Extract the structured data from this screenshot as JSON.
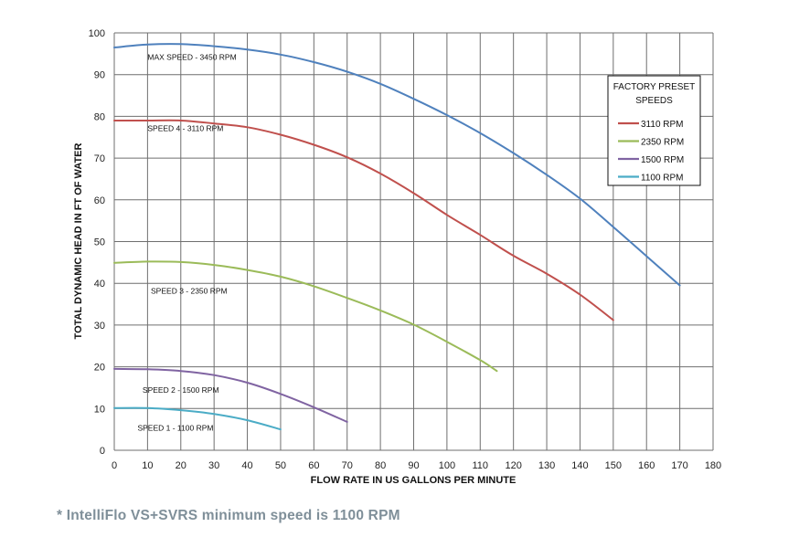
{
  "footnote": "* IntelliFlo VS+SVRS minimum speed is 1100 RPM",
  "chart_data": {
    "type": "line",
    "title": "",
    "xlabel": "FLOW RATE IN US GALLONS PER MINUTE",
    "ylabel": "TOTAL DYNAMIC HEAD IN FT OF WATER",
    "xlim": [
      0,
      180
    ],
    "ylim": [
      0,
      100
    ],
    "xticks": [
      0,
      10,
      20,
      30,
      40,
      50,
      60,
      70,
      80,
      90,
      100,
      110,
      120,
      130,
      140,
      150,
      160,
      170,
      180
    ],
    "yticks": [
      0,
      10,
      20,
      30,
      40,
      50,
      60,
      70,
      80,
      90,
      100
    ],
    "grid": true,
    "legend": {
      "title": "FACTORY PRESET SPEEDS",
      "placement": "top-right",
      "entries": [
        {
          "label": "3110 RPM",
          "color": "#c0504d"
        },
        {
          "label": "2350 RPM",
          "color": "#9bbb59"
        },
        {
          "label": "1500 RPM",
          "color": "#8064a2"
        },
        {
          "label": "1100 RPM",
          "color": "#4bacc6"
        }
      ]
    },
    "series": [
      {
        "name": "MAX SPEED - 3450 RPM",
        "color": "#4f81bd",
        "label": {
          "text": "MAX SPEED - 3450 RPM",
          "x": 10,
          "y": 93.5
        },
        "x": [
          0,
          10,
          20,
          30,
          40,
          50,
          60,
          70,
          80,
          90,
          100,
          110,
          120,
          130,
          140,
          150,
          160,
          170
        ],
        "y": [
          96.5,
          97.2,
          97.3,
          96.8,
          96.0,
          94.8,
          93.0,
          90.7,
          87.8,
          84.2,
          80.3,
          76.0,
          71.2,
          66.0,
          60.3,
          53.5,
          46.5,
          39.5
        ]
      },
      {
        "name": "SPEED 4 - 3110 RPM",
        "color": "#c0504d",
        "label": {
          "text": "SPEED 4 - 3110 RPM",
          "x": 10,
          "y": 76.5
        },
        "x": [
          0,
          10,
          20,
          30,
          40,
          50,
          60,
          70,
          80,
          90,
          100,
          110,
          120,
          130,
          140,
          150
        ],
        "y": [
          79.0,
          79.0,
          79.0,
          78.3,
          77.4,
          75.6,
          73.2,
          70.2,
          66.3,
          61.6,
          56.4,
          51.6,
          46.6,
          42.3,
          37.3,
          31.2
        ]
      },
      {
        "name": "SPEED 3 - 2350 RPM",
        "color": "#9bbb59",
        "label": {
          "text": "SPEED 3 - 2350 RPM",
          "x": 11,
          "y": 37.5
        },
        "x": [
          0,
          10,
          20,
          30,
          40,
          50,
          60,
          70,
          80,
          90,
          100,
          110,
          115
        ],
        "y": [
          44.9,
          45.2,
          45.1,
          44.4,
          43.2,
          41.6,
          39.3,
          36.5,
          33.5,
          30.1,
          26.0,
          21.6,
          19.0
        ]
      },
      {
        "name": "SPEED 2 - 1500 RPM",
        "color": "#8064a2",
        "label": {
          "text": "SPEED 2 - 1500 RPM",
          "x": 8.5,
          "y": 13.8
        },
        "x": [
          0,
          10,
          20,
          30,
          40,
          50,
          60,
          70
        ],
        "y": [
          19.5,
          19.4,
          19.0,
          18.0,
          16.2,
          13.5,
          10.3,
          6.8
        ]
      },
      {
        "name": "SPEED 1 - 1100 RPM",
        "color": "#4bacc6",
        "label": {
          "text": "SPEED 1 - 1100 RPM",
          "x": 7,
          "y": 4.7
        },
        "x": [
          0,
          10,
          20,
          30,
          40,
          50
        ],
        "y": [
          10.1,
          10.1,
          9.6,
          8.7,
          7.2,
          5.0
        ]
      }
    ]
  }
}
